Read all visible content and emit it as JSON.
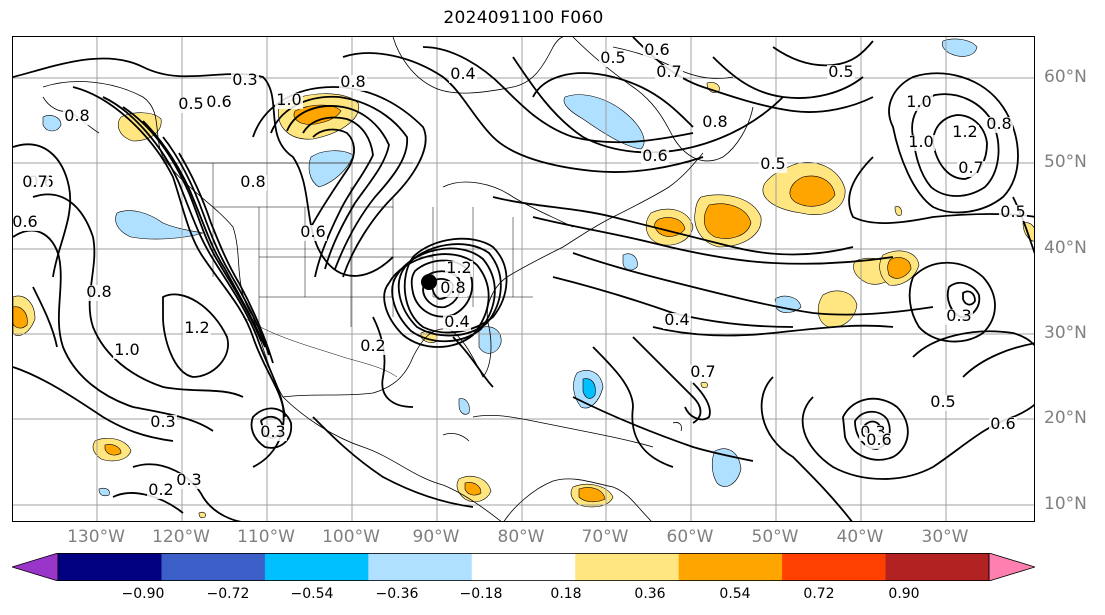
{
  "title": "2024091100 F060",
  "map": {
    "lon_labels": [
      "130°W",
      "120°W",
      "110°W",
      "100°W",
      "90°W",
      "80°W",
      "70°W",
      "60°W",
      "50°W",
      "40°W",
      "30°W"
    ],
    "lat_labels": [
      "60°N",
      "50°N",
      "40°N",
      "30°N",
      "20°N",
      "10°N"
    ],
    "contour_labels": [
      "0.3",
      "0.5",
      "0.6",
      "0.8",
      "1.0",
      "0.8",
      "0.6",
      "0.8",
      "0.6",
      "0.4",
      "0.5",
      "1.0",
      "1.2",
      "0.8",
      "0.7",
      "0.5",
      "0.5",
      "0.4",
      "0.3",
      "0.7",
      "0.6",
      "0.5",
      "0.6",
      "0.8",
      "0.7",
      "0.7",
      "1.2",
      "1.0",
      "0.8",
      "0.3",
      "0.2",
      "0.3",
      "0.2",
      "0.6",
      "0.4",
      "0.8",
      "1.2",
      "0.5",
      "0.3",
      "0.6",
      "0.3",
      "0.6",
      "1.0"
    ],
    "storm_marker": "black-dot",
    "colors": {
      "contour": "#000000",
      "grid": "#9e9e9e",
      "land_outline": "#000000"
    }
  },
  "colorbar": {
    "ticks": [
      "−0.90",
      "−0.72",
      "−0.54",
      "−0.36",
      "−0.18",
      "0.18",
      "0.36",
      "0.54",
      "0.72",
      "0.90"
    ],
    "levels": [
      -0.9,
      -0.72,
      -0.54,
      -0.36,
      -0.18,
      0.18,
      0.36,
      0.54,
      0.72,
      0.9
    ],
    "colors": [
      "#9a35c9",
      "#000080",
      "#3b5fc7",
      "#00bfff",
      "#b0e0ff",
      "#ffffff",
      "#ffe680",
      "#ffa500",
      "#ff4000",
      "#b22222",
      "#ff80b0"
    ]
  }
}
